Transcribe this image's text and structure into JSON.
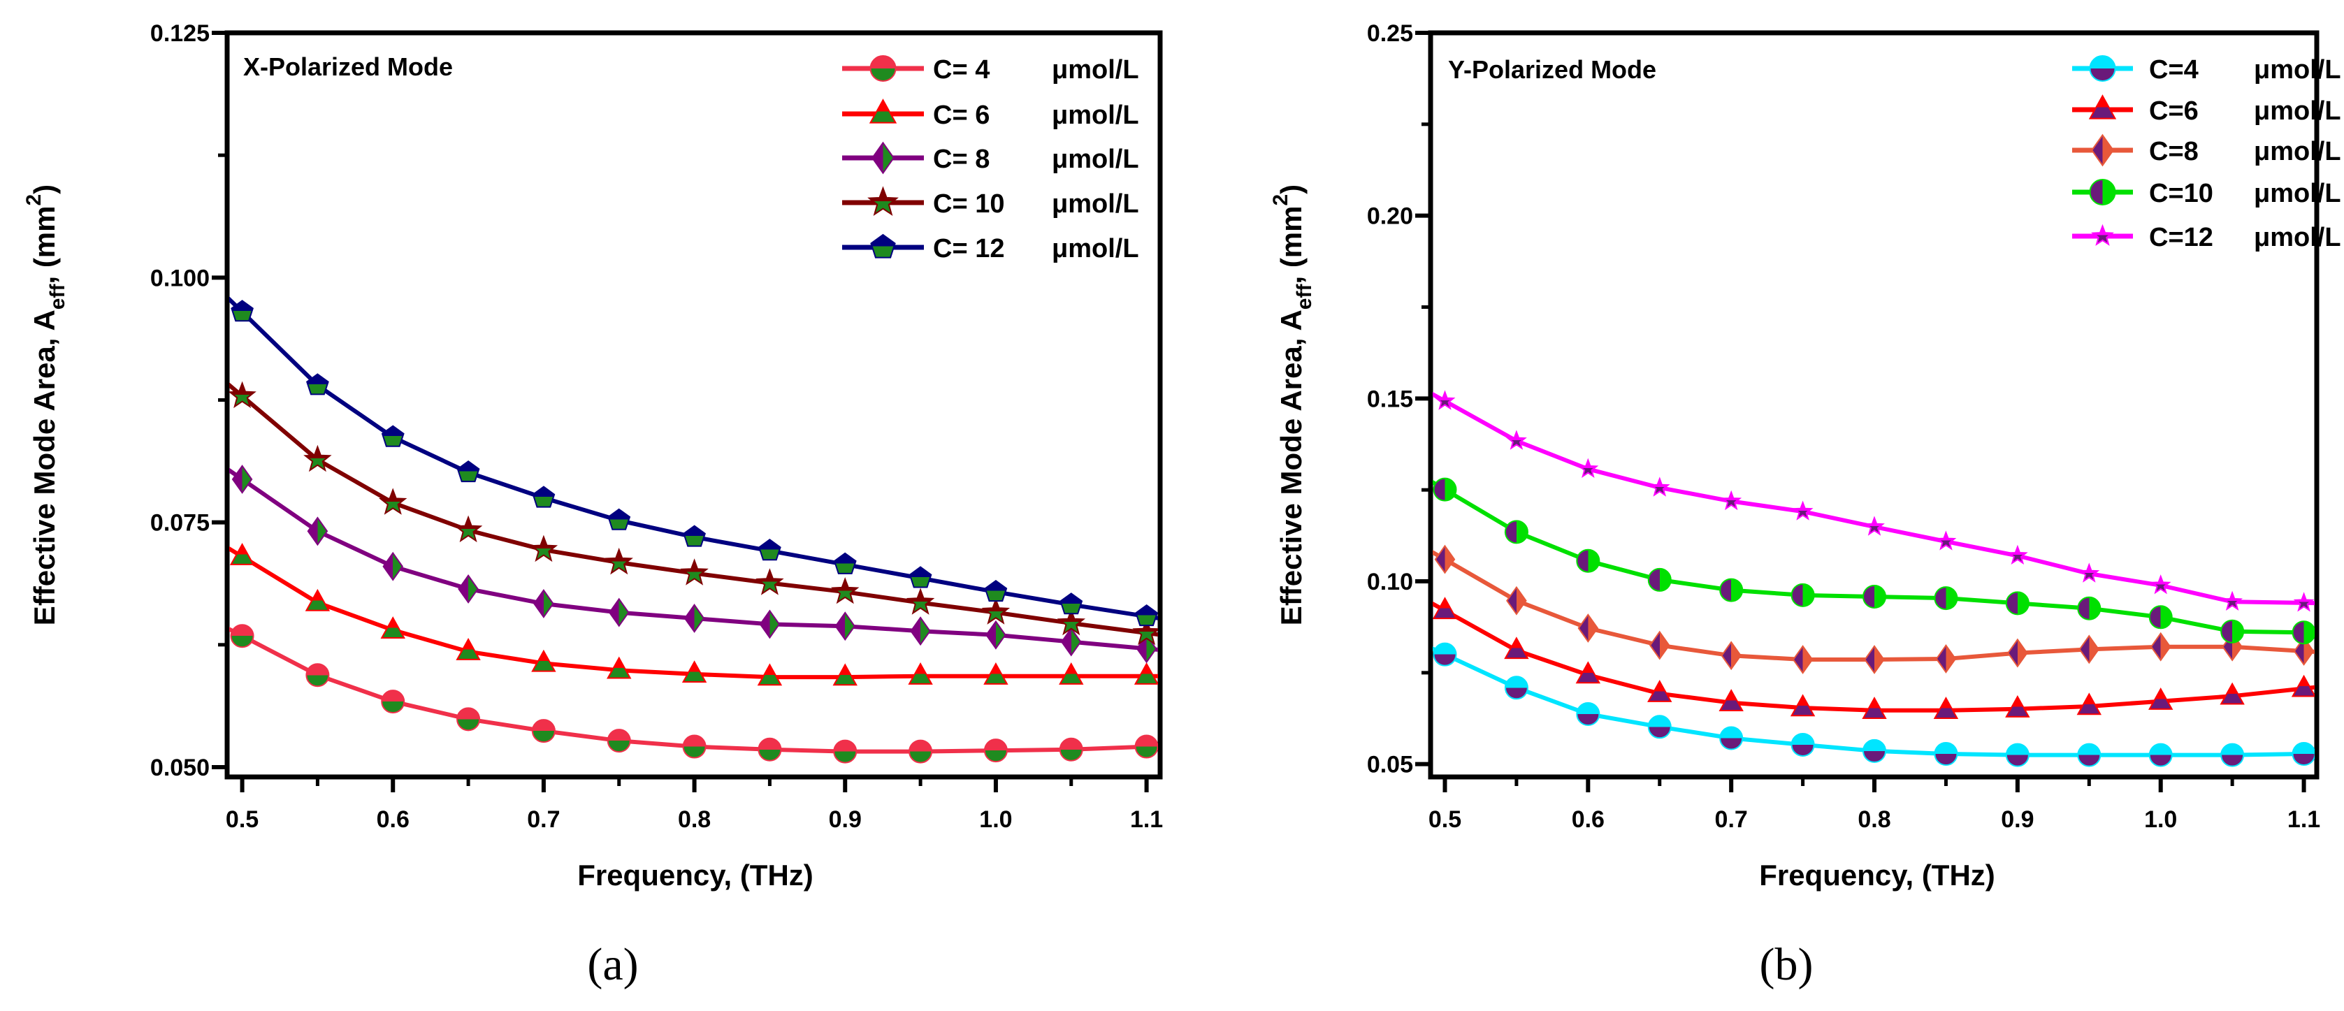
{
  "chart_data": [
    {
      "type": "line",
      "panel_label": "(a)",
      "title": "X-Polarized Mode",
      "xlabel": "Frequency, (THz)",
      "ylabel": "Effective Mode Area, A",
      "ylabel_sub": "eff",
      "ylabel_unit": ", (mm",
      "ylabel_sup": "2",
      "ylabel_close": ")",
      "xlim": [
        0.49,
        1.109
      ],
      "ylim": [
        0.049,
        0.125
      ],
      "xticks": [
        0.5,
        0.6,
        0.7,
        0.8,
        0.9,
        1.0,
        1.1
      ],
      "xtick_labels": [
        "0.5",
        "0.6",
        "0.7",
        "0.8",
        "0.9",
        "1.0",
        "1.1"
      ],
      "yticks": [
        0.05,
        0.075,
        0.1,
        0.125
      ],
      "ytick_labels": [
        "0.050",
        "0.075",
        "0.100",
        "0.125"
      ],
      "legend_position": "top-right",
      "grid": false,
      "x": [
        0.5,
        0.55,
        0.6,
        0.65,
        0.7,
        0.75,
        0.8,
        0.85,
        0.9,
        0.95,
        1.0,
        1.05,
        1.1
      ],
      "series": [
        {
          "name": "C= 4",
          "unit": "μmol/L",
          "color": "#f0304a",
          "marker_fill": "#1f8a1f",
          "marker": "circle",
          "values": [
            0.0634,
            0.0594,
            0.0567,
            0.0549,
            0.0537,
            0.0527,
            0.0521,
            0.0518,
            0.0516,
            0.0516,
            0.0517,
            0.0518,
            0.0521
          ]
        },
        {
          "name": "C= 6",
          "unit": "μmol/L",
          "color": "#ff0000",
          "marker_fill": "#1f8a1f",
          "marker": "triangle",
          "values": [
            0.0715,
            0.0668,
            0.064,
            0.0618,
            0.0606,
            0.0599,
            0.0595,
            0.0592,
            0.0592,
            0.0593,
            0.0593,
            0.0593,
            0.0593
          ]
        },
        {
          "name": "C= 8",
          "unit": "μmol/L",
          "color": "#800080",
          "marker_fill": "#1f8a1f",
          "marker": "diamond",
          "values": [
            0.0794,
            0.0741,
            0.0705,
            0.0682,
            0.0667,
            0.0658,
            0.0652,
            0.0646,
            0.0644,
            0.0639,
            0.0635,
            0.0628,
            0.0621
          ]
        },
        {
          "name": "C= 10",
          "unit": "μmol/L",
          "color": "#800000",
          "marker_fill": "#1f8a1f",
          "marker": "star",
          "values": [
            0.0879,
            0.0814,
            0.077,
            0.0742,
            0.0722,
            0.0709,
            0.0698,
            0.0688,
            0.0679,
            0.0668,
            0.0658,
            0.0647,
            0.0637
          ]
        },
        {
          "name": "C= 12",
          "unit": "μmol/L",
          "color": "#000080",
          "marker_fill": "#1f8a1f",
          "marker": "pentagon",
          "values": [
            0.0965,
            0.089,
            0.0837,
            0.0801,
            0.0775,
            0.0752,
            0.0735,
            0.0721,
            0.0707,
            0.0693,
            0.0679,
            0.0666,
            0.0654
          ]
        }
      ]
    },
    {
      "type": "line",
      "panel_label": "(b)",
      "title": "Y-Polarized Mode",
      "xlabel": "Frequency, (THz)",
      "ylabel": "Effective Mode Area, A",
      "ylabel_sub": "eff",
      "ylabel_unit": ", (mm",
      "ylabel_sup": "2",
      "ylabel_close": ")",
      "xlim": [
        0.49,
        1.109
      ],
      "ylim": [
        0.0465,
        0.25
      ],
      "xticks": [
        0.5,
        0.6,
        0.7,
        0.8,
        0.9,
        1.0,
        1.1
      ],
      "xtick_labels": [
        "0.5",
        "0.6",
        "0.7",
        "0.8",
        "0.9",
        "1.0",
        "1.1"
      ],
      "yticks": [
        0.05,
        0.1,
        0.15,
        0.2,
        0.25
      ],
      "ytick_labels": [
        "0.05",
        "0.10",
        "0.15",
        "0.20",
        "0.25"
      ],
      "legend_position": "top-right",
      "grid": false,
      "x": [
        0.5,
        0.55,
        0.6,
        0.65,
        0.7,
        0.75,
        0.8,
        0.85,
        0.9,
        0.95,
        1.0,
        1.05,
        1.1
      ],
      "series": [
        {
          "name": "C=4",
          "unit": "μmol/L",
          "color": "#00e5ff",
          "marker_fill": "#6a1a7a",
          "marker": "circle",
          "values": [
            0.08,
            0.0709,
            0.0637,
            0.0602,
            0.0571,
            0.0553,
            0.0536,
            0.0528,
            0.0525,
            0.0525,
            0.0525,
            0.0525,
            0.0528
          ]
        },
        {
          "name": "C=6",
          "unit": "μmol/L",
          "color": "#ff0000",
          "marker_fill": "#6a1a7a",
          "marker": "triangle",
          "values": [
            0.092,
            0.0811,
            0.0744,
            0.0693,
            0.0668,
            0.0654,
            0.0647,
            0.0647,
            0.0651,
            0.0658,
            0.0672,
            0.0686,
            0.0707
          ]
        },
        {
          "name": "C=8",
          "unit": "μmol/L",
          "color": "#e8583a",
          "marker_fill": "#6a1a7a",
          "marker": "diamond",
          "values": [
            0.106,
            0.0947,
            0.0872,
            0.0825,
            0.0797,
            0.0786,
            0.0786,
            0.0788,
            0.0804,
            0.0814,
            0.0821,
            0.0821,
            0.0809
          ]
        },
        {
          "name": "C=10",
          "unit": "μmol/L",
          "color": "#00e000",
          "marker_fill": "#6a1a7a",
          "marker": "circle-half",
          "values": [
            0.1251,
            0.1135,
            0.1056,
            0.1004,
            0.0976,
            0.0962,
            0.0958,
            0.0954,
            0.094,
            0.0926,
            0.0902,
            0.0863,
            0.086
          ]
        },
        {
          "name": "C=12",
          "unit": "μmol/L",
          "color": "#ff00ff",
          "marker_fill": "#6a1a7a",
          "marker": "star-small",
          "values": [
            0.1493,
            0.1384,
            0.1307,
            0.1256,
            0.1219,
            0.1191,
            0.1149,
            0.1109,
            0.107,
            0.1021,
            0.0989,
            0.0944,
            0.0941
          ]
        }
      ]
    }
  ]
}
